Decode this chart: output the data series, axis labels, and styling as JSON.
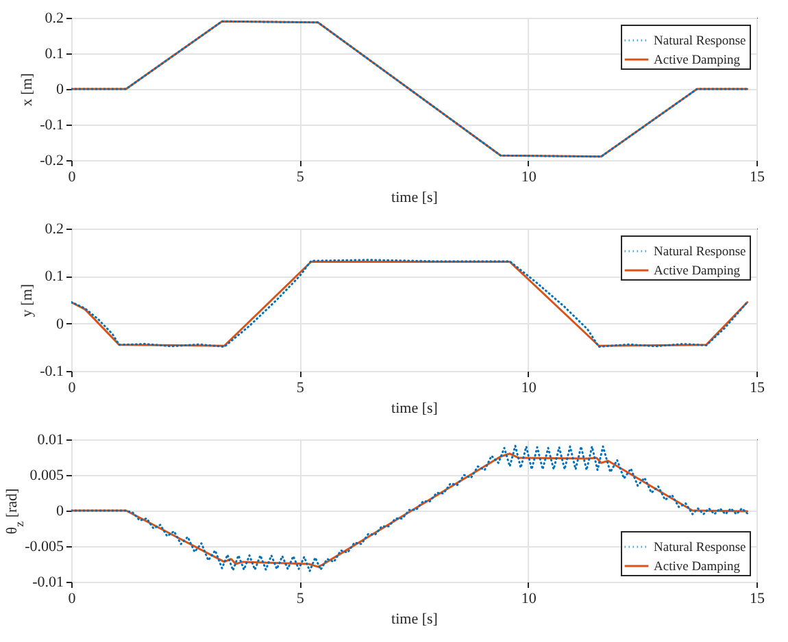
{
  "chart_data": [
    {
      "type": "line",
      "xlabel": "time  [s]",
      "ylabel": "x  [m]",
      "xlim": [
        0,
        15
      ],
      "xticks": [
        0,
        5,
        10,
        15
      ],
      "ylim": [
        -0.2,
        0.2
      ],
      "yticks": [
        -0.2,
        -0.1,
        0,
        0.1,
        0.2
      ],
      "grid": true,
      "legend": "top right",
      "series": [
        {
          "name": "Natural Response",
          "color": "#0072bd",
          "line_style": "dotted",
          "x": [
            0,
            1.2,
            3.3,
            5.4,
            9.4,
            11.6,
            13.7,
            14.8
          ],
          "values": [
            0,
            0,
            0.19,
            0.187,
            -0.187,
            -0.19,
            0,
            0
          ]
        },
        {
          "name": "Active Damping",
          "color": "#d95319",
          "line_style": "solid",
          "x": [
            0,
            1.2,
            3.3,
            5.4,
            9.4,
            11.6,
            13.7,
            14.8
          ],
          "values": [
            0,
            0,
            0.19,
            0.187,
            -0.187,
            -0.19,
            0,
            0
          ]
        }
      ]
    },
    {
      "type": "line",
      "xlabel": "time  [s]",
      "ylabel": "y  [m]",
      "xlim": [
        0,
        15
      ],
      "xticks": [
        0,
        5,
        10,
        15
      ],
      "ylim": [
        -0.1,
        0.2
      ],
      "yticks": [
        -0.1,
        0,
        0.1,
        0.2
      ],
      "grid": true,
      "legend": "top right",
      "series": [
        {
          "name": "Natural Response",
          "color": "#0072bd",
          "line_style": "dotted",
          "x": [
            0,
            0.3,
            0.6,
            0.9,
            1.05,
            1.6,
            2.2,
            2.8,
            3.35,
            3.9,
            4.5,
            5.0,
            5.25,
            6.5,
            8.0,
            9.6,
            10.2,
            10.8,
            11.3,
            11.55,
            12.2,
            12.8,
            13.4,
            13.9,
            14.3,
            14.8
          ],
          "values": [
            0.045,
            0.032,
            0.008,
            -0.022,
            -0.045,
            -0.043,
            -0.048,
            -0.044,
            -0.049,
            -0.005,
            0.05,
            0.1,
            0.132,
            0.134,
            0.131,
            0.131,
            0.085,
            0.035,
            -0.012,
            -0.049,
            -0.044,
            -0.048,
            -0.043,
            -0.046,
            -0.01,
            0.045
          ]
        },
        {
          "name": "Active Damping",
          "color": "#d95319",
          "line_style": "solid",
          "x": [
            0,
            0.3,
            1.05,
            3.35,
            5.25,
            9.6,
            11.55,
            13.9,
            14.8
          ],
          "values": [
            0.045,
            0.03,
            -0.045,
            -0.047,
            0.13,
            0.13,
            -0.047,
            -0.045,
            0.045
          ]
        }
      ]
    },
    {
      "type": "line",
      "xlabel": "time  [s]",
      "ylabel": "θ$_{z}$  [rad]",
      "xlim": [
        0,
        15
      ],
      "xticks": [
        0,
        5,
        10,
        15
      ],
      "ylim": [
        -0.01,
        0.01
      ],
      "yticks": [
        -0.01,
        -0.005,
        0,
        0.005,
        0.01
      ],
      "grid": true,
      "legend": "bottom right",
      "series": [
        {
          "name": "Natural Response",
          "color": "#0072bd",
          "line_style": "dotted",
          "x": [
            0,
            1.2,
            1.35,
            1.5,
            1.65,
            1.8,
            1.95,
            2.1,
            2.25,
            2.4,
            2.55,
            2.7,
            2.85,
            3.0,
            3.15,
            3.3,
            3.42,
            3.54,
            3.66,
            3.78,
            3.9,
            4.02,
            4.14,
            4.26,
            4.38,
            4.5,
            4.62,
            4.74,
            4.86,
            4.98,
            5.1,
            5.22,
            5.34,
            5.46,
            5.6,
            5.75,
            5.9,
            6.05,
            6.2,
            6.35,
            6.5,
            6.65,
            6.8,
            6.95,
            7.1,
            7.25,
            7.4,
            7.55,
            7.7,
            7.85,
            8.0,
            8.15,
            8.3,
            8.45,
            8.6,
            8.75,
            8.9,
            9.05,
            9.2,
            9.35,
            9.48,
            9.6,
            9.72,
            9.84,
            9.96,
            10.08,
            10.2,
            10.32,
            10.44,
            10.56,
            10.68,
            10.8,
            10.92,
            11.04,
            11.16,
            11.28,
            11.4,
            11.52,
            11.64,
            11.8,
            11.95,
            12.1,
            12.25,
            12.4,
            12.55,
            12.7,
            12.85,
            13.0,
            13.15,
            13.3,
            13.45,
            13.6,
            13.72,
            13.84,
            13.96,
            14.08,
            14.2,
            14.32,
            14.44,
            14.56,
            14.68,
            14.8
          ],
          "values": [
            0,
            0,
            -0.0003,
            -0.0014,
            -0.0011,
            -0.0025,
            -0.002,
            -0.0036,
            -0.0029,
            -0.0047,
            -0.0037,
            -0.0058,
            -0.0046,
            -0.007,
            -0.0056,
            -0.0081,
            -0.0062,
            -0.0084,
            -0.0063,
            -0.0083,
            -0.0063,
            -0.0083,
            -0.0063,
            -0.0083,
            -0.0063,
            -0.0082,
            -0.0064,
            -0.0082,
            -0.0064,
            -0.0082,
            -0.0065,
            -0.0085,
            -0.0066,
            -0.0083,
            -0.0068,
            -0.0072,
            -0.0056,
            -0.0059,
            -0.0045,
            -0.0047,
            -0.0033,
            -0.0034,
            -0.0022,
            -0.0022,
            -0.0011,
            -0.0011,
            0.0001,
            0.0001,
            0.0013,
            0.0013,
            0.0025,
            0.0024,
            0.0038,
            0.0036,
            0.005,
            0.0046,
            0.0062,
            0.0057,
            0.0077,
            0.0067,
            0.0088,
            0.0062,
            0.0091,
            0.006,
            0.009,
            0.0058,
            0.0089,
            0.0058,
            0.0088,
            0.0058,
            0.0089,
            0.0058,
            0.009,
            0.0058,
            0.009,
            0.0057,
            0.009,
            0.0057,
            0.009,
            0.0054,
            0.0071,
            0.0045,
            0.0059,
            0.0035,
            0.0046,
            0.0025,
            0.0034,
            0.0015,
            0.0022,
            0.0005,
            0.001,
            -0.0005,
            0.0003,
            -0.0005,
            0.0003,
            -0.0005,
            0.0003,
            -0.0005,
            0.0003,
            -0.0005,
            0.0003,
            -0.0004
          ]
        },
        {
          "name": "Active Damping",
          "color": "#d95319",
          "line_style": "solid",
          "x": [
            0,
            1.2,
            3.35,
            3.5,
            3.6,
            3.75,
            5.2,
            5.4,
            5.5,
            9.4,
            9.6,
            9.8,
            11.3,
            11.5,
            11.6,
            11.75,
            13.6,
            14.8
          ],
          "values": [
            0,
            0,
            -0.0072,
            -0.0068,
            -0.0075,
            -0.0072,
            -0.0075,
            -0.0079,
            -0.0076,
            0.0076,
            0.008,
            0.0074,
            0.0073,
            0.0074,
            0.0067,
            0.007,
            0,
            -0.0001
          ]
        }
      ]
    }
  ]
}
